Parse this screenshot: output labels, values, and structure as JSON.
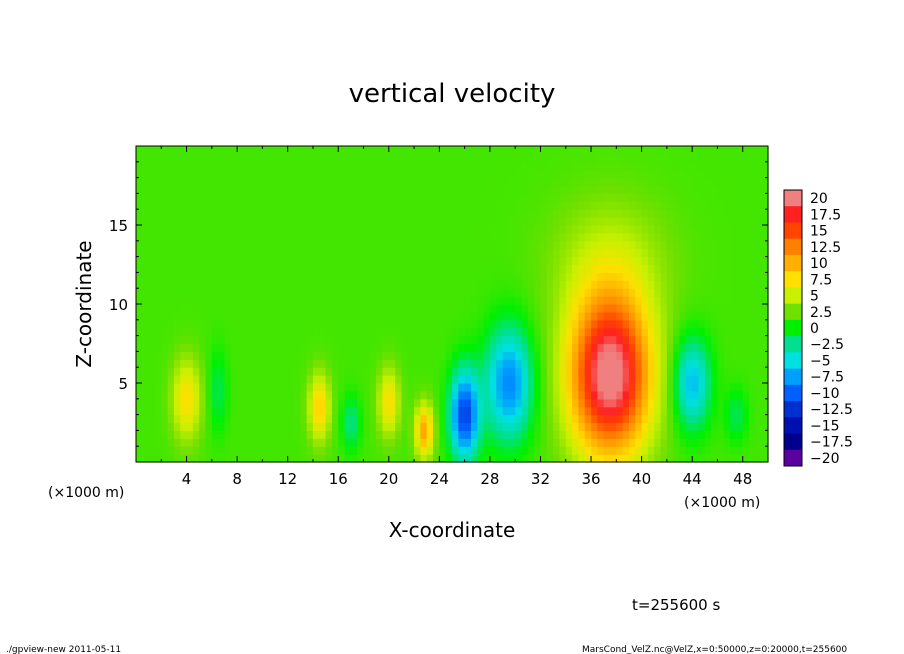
{
  "chart_data": {
    "type": "heatmap",
    "title": "vertical velocity",
    "xlabel": "X-coordinate",
    "ylabel": "Z-coordinate",
    "x_unit_label": "(×1000 m)",
    "x_unit_label_right": "(×1000 m)",
    "xlim": [
      0,
      50
    ],
    "ylim": [
      0,
      20
    ],
    "x_ticks": [
      4,
      8,
      12,
      16,
      20,
      24,
      28,
      32,
      36,
      40,
      44,
      48
    ],
    "x_tick_labels": [
      "4",
      "8",
      "12",
      "16",
      "20",
      "24",
      "28",
      "32",
      "36",
      "40",
      "44",
      "48"
    ],
    "y_ticks": [
      5,
      10,
      15
    ],
    "y_tick_labels": [
      "5",
      "10",
      "15"
    ],
    "background_value": 1.5,
    "features": [
      {
        "x": 37.5,
        "z": 5.5,
        "sx": 2.2,
        "sz": 3.5,
        "value": 20
      },
      {
        "x": 37.5,
        "z": 12.5,
        "sx": 3.2,
        "sz": 3.0,
        "value": 3
      },
      {
        "x": 29.5,
        "z": 5.0,
        "sx": 1.3,
        "sz": 2.5,
        "value": -10
      },
      {
        "x": 26.0,
        "z": 3.0,
        "sx": 0.8,
        "sz": 2.0,
        "value": -13
      },
      {
        "x": 44.0,
        "z": 5.0,
        "sx": 1.0,
        "sz": 2.0,
        "value": -8
      },
      {
        "x": 22.8,
        "z": 2.0,
        "sx": 0.5,
        "sz": 1.2,
        "value": 9
      },
      {
        "x": 20.0,
        "z": 3.8,
        "sx": 0.6,
        "sz": 1.5,
        "value": 6
      },
      {
        "x": 14.5,
        "z": 3.5,
        "sx": 0.6,
        "sz": 1.5,
        "value": 7
      },
      {
        "x": 4.0,
        "z": 4.0,
        "sx": 0.8,
        "sz": 1.8,
        "value": 6
      },
      {
        "x": 17.0,
        "z": 2.5,
        "sx": 0.5,
        "sz": 1.2,
        "value": -4
      },
      {
        "x": 6.5,
        "z": 4.5,
        "sx": 0.5,
        "sz": 1.8,
        "value": -3
      },
      {
        "x": 47.5,
        "z": 3.0,
        "sx": 0.6,
        "sz": 1.2,
        "value": -3
      }
    ],
    "colorbar": {
      "labels": [
        "20",
        "17.5",
        "15",
        "12.5",
        "10",
        "7.5",
        "5",
        "2.5",
        "0",
        "−2.5",
        "−5",
        "−7.5",
        "−10",
        "−12.5",
        "−15",
        "−17.5",
        "−20"
      ],
      "levels": [
        20,
        17.5,
        15,
        12.5,
        10,
        7.5,
        5,
        2.5,
        0,
        -2.5,
        -5,
        -7.5,
        -10,
        -12.5,
        -15,
        -17.5,
        -20
      ],
      "colors": [
        "#f08080",
        "#ff2020",
        "#ff4500",
        "#ff8000",
        "#ffb000",
        "#ffe000",
        "#c8f000",
        "#70e000",
        "#00f000",
        "#00e090",
        "#00e0e0",
        "#00a0ff",
        "#0060ff",
        "#0030d0",
        "#0010b0",
        "#00008c",
        "#5a00a0"
      ]
    }
  },
  "footer": {
    "time_label": "t=255600 s",
    "left_note": "./gpview-new   2011-05-11",
    "right_note": "MarsCond_VelZ.nc@VelZ,x=0:50000,z=0:20000,t=255600"
  }
}
